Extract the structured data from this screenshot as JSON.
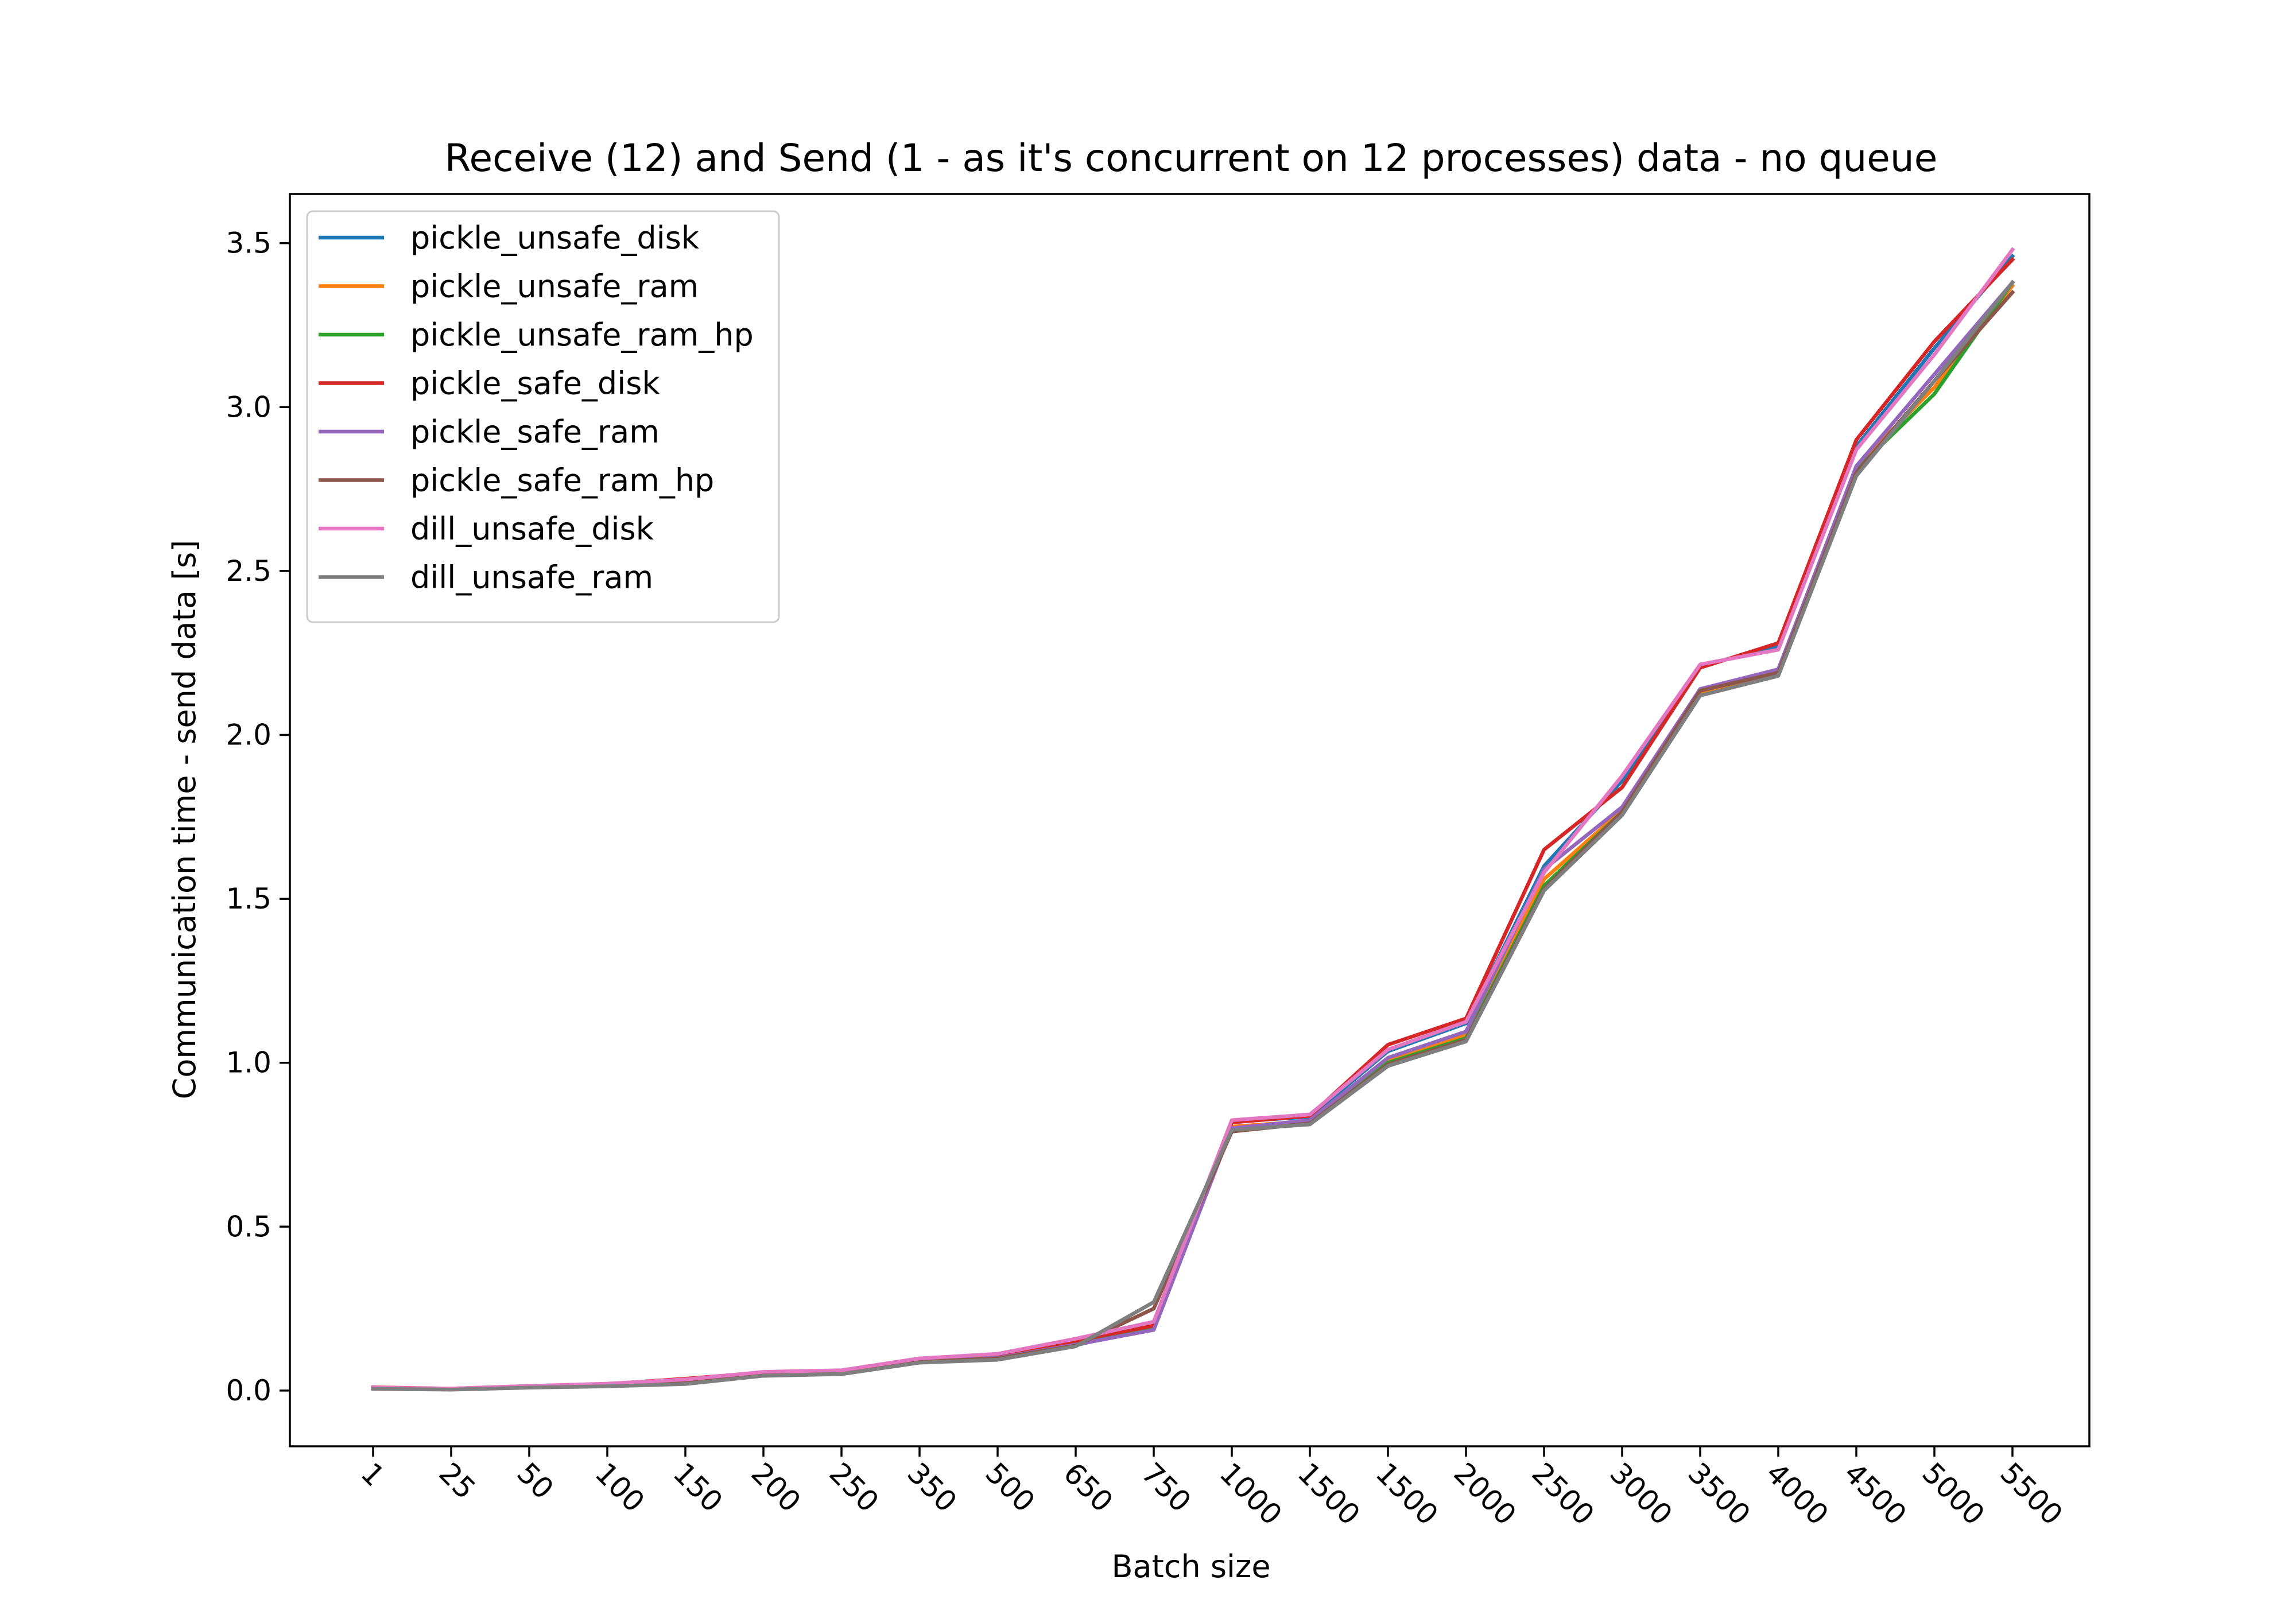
{
  "chart_data": {
    "type": "line",
    "title": "Receive (12) and Send (1 - as it's concurrent on 12 processes) data - no queue",
    "xlabel": "Batch size",
    "ylabel": "Communication time - send data [s]",
    "categories": [
      "1",
      "25",
      "50",
      "100",
      "150",
      "200",
      "250",
      "350",
      "500",
      "650",
      "750",
      "1000",
      "1500",
      "1500",
      "2000",
      "2500",
      "3000",
      "3500",
      "4000",
      "4500",
      "5000",
      "5500"
    ],
    "yticks": [
      "0.0",
      "0.5",
      "1.0",
      "1.5",
      "2.0",
      "2.5",
      "3.0",
      "3.5"
    ],
    "ylim": [
      -0.17,
      3.65
    ],
    "grid": false,
    "legend_position": "upper-left",
    "series": [
      {
        "name": "pickle_unsafe_disk",
        "color": "#1f77b4",
        "values": [
          0.008,
          0.005,
          0.012,
          0.018,
          0.032,
          0.052,
          0.058,
          0.092,
          0.105,
          0.148,
          0.195,
          0.82,
          0.835,
          1.035,
          1.12,
          1.6,
          1.86,
          2.21,
          2.27,
          2.88,
          3.18,
          3.46
        ]
      },
      {
        "name": "pickle_unsafe_ram",
        "color": "#ff7f0e",
        "values": [
          0.007,
          0.004,
          0.011,
          0.016,
          0.028,
          0.05,
          0.055,
          0.09,
          0.1,
          0.14,
          0.19,
          0.805,
          0.822,
          1.005,
          1.085,
          1.56,
          1.77,
          2.13,
          2.19,
          2.82,
          3.06,
          3.37
        ]
      },
      {
        "name": "pickle_unsafe_ram_hp",
        "color": "#2ca02c",
        "values": [
          0.006,
          0.004,
          0.01,
          0.015,
          0.026,
          0.049,
          0.054,
          0.089,
          0.098,
          0.138,
          0.195,
          0.8,
          0.818,
          1.0,
          1.075,
          1.54,
          1.765,
          2.14,
          2.195,
          2.81,
          3.04,
          3.38
        ]
      },
      {
        "name": "pickle_safe_disk",
        "color": "#d62728",
        "values": [
          0.01,
          0.006,
          0.014,
          0.02,
          0.036,
          0.055,
          0.06,
          0.095,
          0.108,
          0.152,
          0.198,
          0.818,
          0.838,
          1.055,
          1.135,
          1.65,
          1.84,
          2.205,
          2.28,
          2.9,
          3.2,
          3.45
        ]
      },
      {
        "name": "pickle_safe_ram",
        "color": "#9467bd",
        "values": [
          0.007,
          0.004,
          0.011,
          0.016,
          0.027,
          0.05,
          0.055,
          0.09,
          0.1,
          0.14,
          0.185,
          0.8,
          0.825,
          1.015,
          1.095,
          1.59,
          1.78,
          2.14,
          2.2,
          2.82,
          3.1,
          3.38
        ]
      },
      {
        "name": "pickle_safe_ram_hp",
        "color": "#8c564b",
        "values": [
          0.006,
          0.004,
          0.01,
          0.015,
          0.025,
          0.048,
          0.053,
          0.088,
          0.098,
          0.137,
          0.25,
          0.79,
          0.815,
          0.995,
          1.07,
          1.53,
          1.765,
          2.135,
          2.19,
          2.8,
          3.08,
          3.35
        ]
      },
      {
        "name": "dill_unsafe_disk",
        "color": "#e377c2",
        "values": [
          0.009,
          0.006,
          0.014,
          0.021,
          0.034,
          0.057,
          0.062,
          0.098,
          0.112,
          0.158,
          0.21,
          0.825,
          0.842,
          1.04,
          1.125,
          1.58,
          1.875,
          2.215,
          2.26,
          2.87,
          3.16,
          3.48
        ]
      },
      {
        "name": "dill_unsafe_ram",
        "color": "#7f7f7f",
        "values": [
          0.005,
          0.003,
          0.009,
          0.013,
          0.02,
          0.045,
          0.05,
          0.085,
          0.094,
          0.135,
          0.27,
          0.795,
          0.812,
          0.99,
          1.065,
          1.525,
          1.755,
          2.12,
          2.18,
          2.79,
          3.08,
          3.38
        ]
      }
    ]
  }
}
